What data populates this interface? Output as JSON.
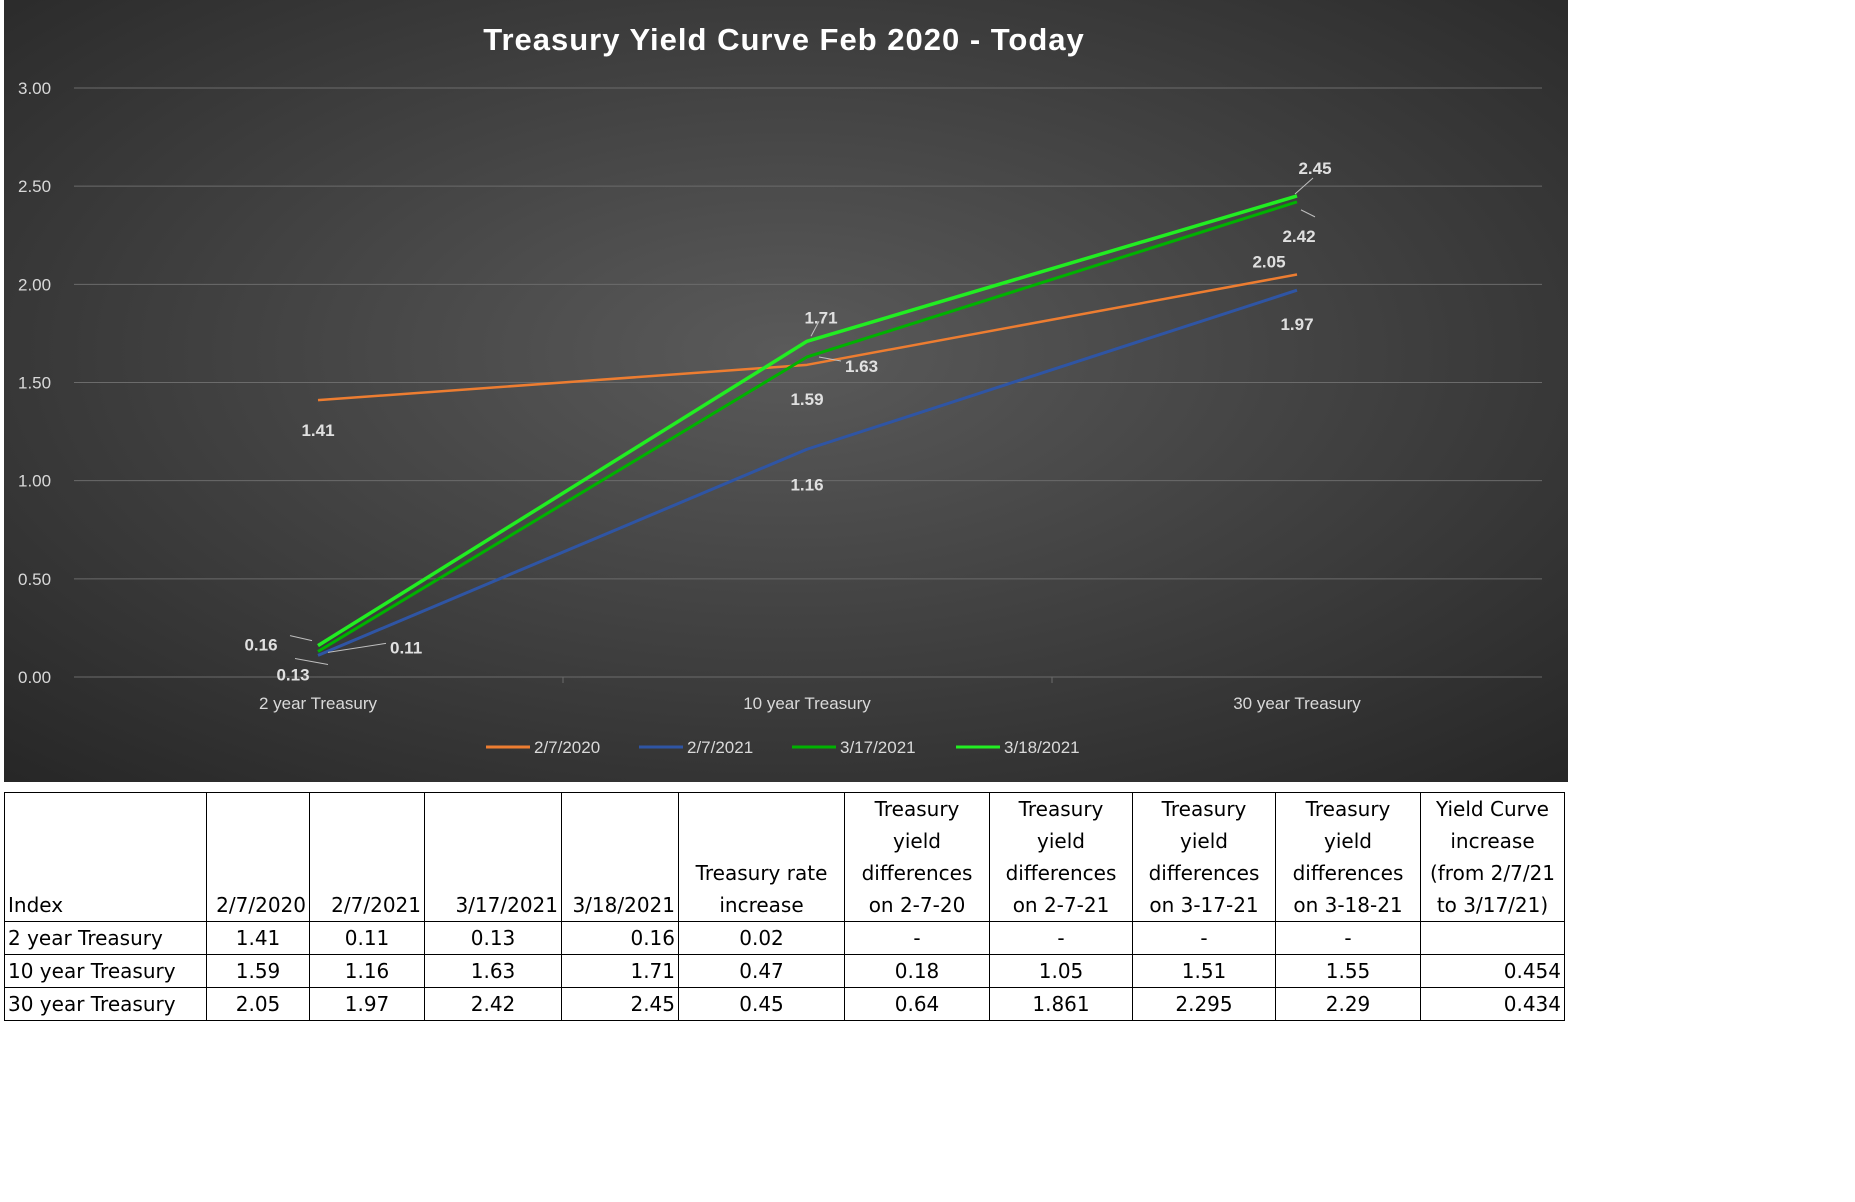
{
  "chart_data": {
    "type": "line",
    "title": "Treasury Yield Curve Feb 2020 - Today",
    "categories": [
      "2 year Treasury",
      "10 year Treasury",
      "30 year Treasury"
    ],
    "ylim": [
      0,
      3
    ],
    "yticks": [
      "0.00",
      "0.50",
      "1.00",
      "1.50",
      "2.00",
      "2.50",
      "3.00"
    ],
    "grid": true,
    "legend_position": "bottom",
    "colors": {
      "background_center": "#5a5a5a",
      "background_edge": "#2a2a2a",
      "grid": "#6b6b6b",
      "text": "#d9d9d9",
      "title": "#ffffff"
    },
    "series": [
      {
        "name": "2/7/2020",
        "values": [
          1.41,
          1.59,
          2.05
        ],
        "color": "#ed7d31",
        "width": 2.5
      },
      {
        "name": "2/7/2021",
        "values": [
          0.11,
          1.16,
          1.97
        ],
        "color": "#2f55a4",
        "width": 3
      },
      {
        "name": "3/17/2021",
        "values": [
          0.13,
          1.63,
          2.42
        ],
        "color": "#00b200",
        "width": 3
      },
      {
        "name": "3/18/2021",
        "values": [
          0.16,
          1.71,
          2.45
        ],
        "color": "#22ee22",
        "width": 3.5
      }
    ],
    "data_labels": [
      "1.41",
      "1.59",
      "2.05",
      "0.11",
      "1.16",
      "1.97",
      "0.13",
      "1.63",
      "2.42",
      "0.16",
      "1.71",
      "2.45"
    ]
  },
  "table": {
    "headers": [
      "Index",
      "2/7/2020",
      "2/7/2021",
      "3/17/2021",
      "3/18/2021",
      "Treasury rate increase",
      "Treasury yield differences on 2-7-20",
      "Treasury yield differences on 2-7-21",
      "Treasury yield differences on 3-17-21",
      "Treasury yield differences on 3-18-21",
      "Yield Curve increase (from 2/7/21 to 3/17/21)"
    ],
    "rows": [
      [
        "2 year Treasury",
        "1.41",
        "0.11",
        "0.13",
        "0.16",
        "0.02",
        "-",
        "-",
        "-",
        "-",
        ""
      ],
      [
        "10 year Treasury",
        "1.59",
        "1.16",
        "1.63",
        "1.71",
        "0.47",
        "0.18",
        "1.05",
        "1.51",
        "1.55",
        "0.454"
      ],
      [
        "30 year Treasury",
        "2.05",
        "1.97",
        "2.42",
        "2.45",
        "0.45",
        "0.64",
        "1.861",
        "2.295",
        "2.29",
        "0.434"
      ]
    ]
  }
}
